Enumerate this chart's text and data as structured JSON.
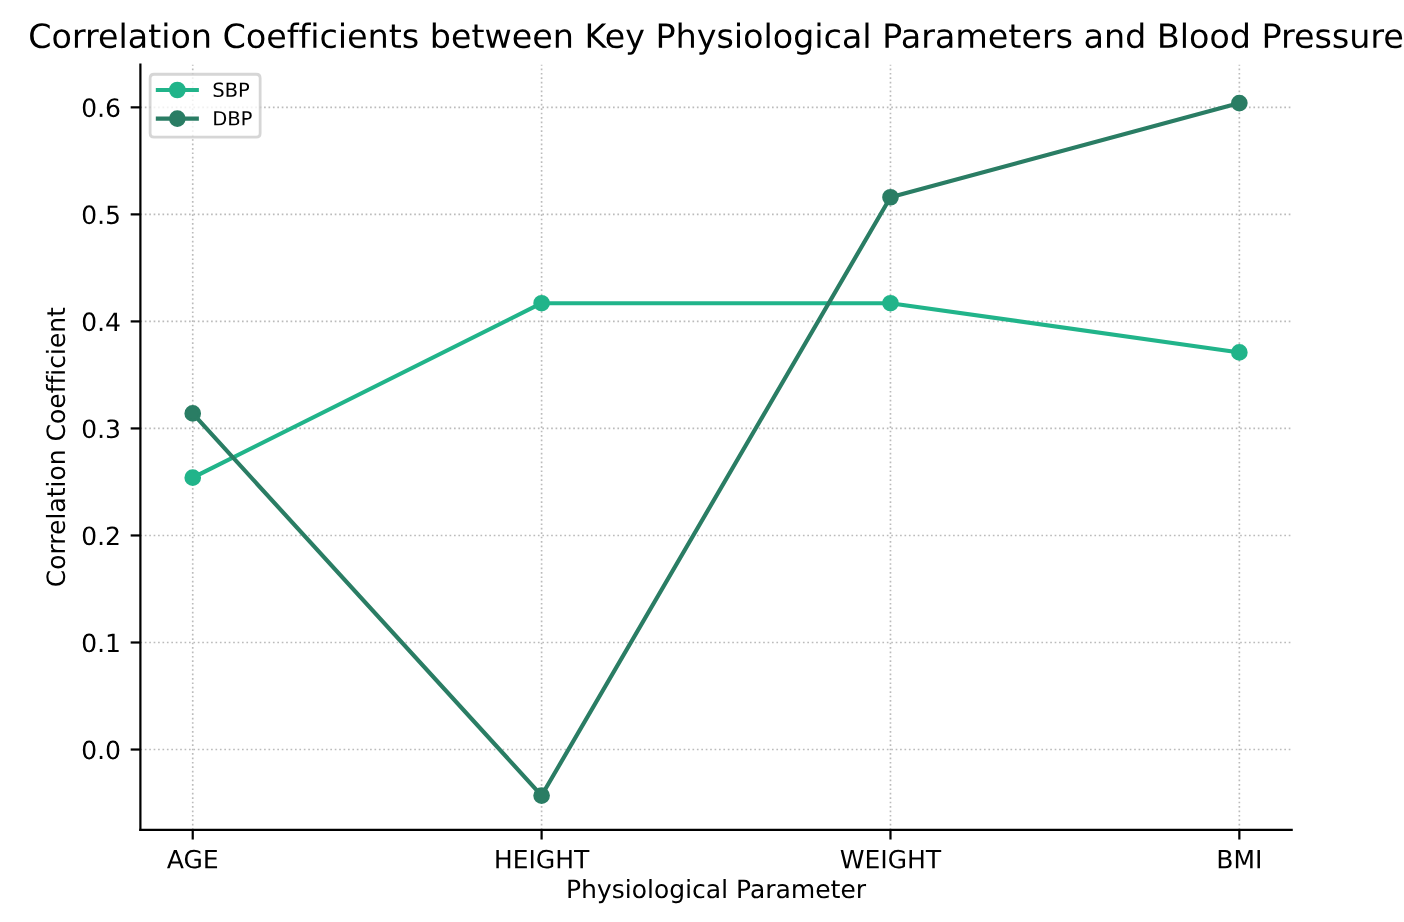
{
  "chart_data": {
    "type": "line",
    "title": "Correlation Coefficients between Key Physiological Parameters and Blood Pressure",
    "xlabel": "Physiological Parameter",
    "ylabel": "Correlation Coefficient",
    "categories": [
      "AGE",
      "HEIGHT",
      "WEIGHT",
      "BMI"
    ],
    "series": [
      {
        "name": "SBP",
        "color": "#21b48a",
        "values": [
          0.254,
          0.417,
          0.417,
          0.371
        ]
      },
      {
        "name": "DBP",
        "color": "#2a7d64",
        "values": [
          0.314,
          -0.043,
          0.516,
          0.604
        ]
      }
    ],
    "ylim": [
      -0.075,
      0.64
    ],
    "yticks": [
      {
        "value": 0.0,
        "label": "0.0"
      },
      0.1,
      0.2,
      0.3,
      0.4,
      0.5,
      0.6
    ],
    "grid": true,
    "legend": "top left",
    "marker": "circle",
    "line_style": "solid"
  }
}
